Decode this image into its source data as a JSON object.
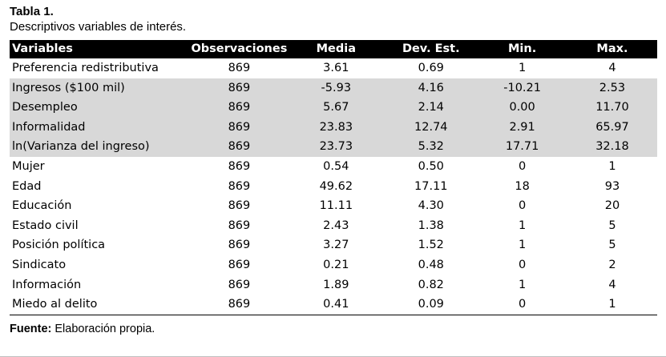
{
  "caption": {
    "title": "Tabla 1.",
    "subtitle": "Descriptivos variables de interés."
  },
  "table": {
    "headers": [
      "Variables",
      "Observaciones",
      "Media",
      "Dev. Est.",
      "Min.",
      "Max."
    ],
    "rows": [
      {
        "shaded": false,
        "cells": [
          "Preferencia redistributiva",
          "869",
          "3.61",
          "0.69",
          "1",
          "4"
        ]
      },
      {
        "shaded": true,
        "cells": [
          "Ingresos ($100 mil)",
          "869",
          "-5.93",
          "4.16",
          "-10.21",
          "2.53"
        ]
      },
      {
        "shaded": true,
        "cells": [
          "Desempleo",
          "869",
          "5.67",
          "2.14",
          "0.00",
          "11.70"
        ]
      },
      {
        "shaded": true,
        "cells": [
          "Informalidad",
          "869",
          "23.83",
          "12.74",
          "2.91",
          "65.97"
        ]
      },
      {
        "shaded": true,
        "cells": [
          "ln(Varianza del ingreso)",
          "869",
          "23.73",
          "5.32",
          "17.71",
          "32.18"
        ]
      },
      {
        "shaded": false,
        "cells": [
          "Mujer",
          "869",
          "0.54",
          "0.50",
          "0",
          "1"
        ]
      },
      {
        "shaded": false,
        "cells": [
          "Edad",
          "869",
          "49.62",
          "17.11",
          "18",
          "93"
        ]
      },
      {
        "shaded": false,
        "cells": [
          "Educación",
          "869",
          "11.11",
          "4.30",
          "0",
          "20"
        ]
      },
      {
        "shaded": false,
        "cells": [
          "Estado civil",
          "869",
          "2.43",
          "1.38",
          "1",
          "5"
        ]
      },
      {
        "shaded": false,
        "cells": [
          "Posición política",
          "869",
          "3.27",
          "1.52",
          "1",
          "5"
        ]
      },
      {
        "shaded": false,
        "cells": [
          "Sindicato",
          "869",
          "0.21",
          "0.48",
          "0",
          "2"
        ]
      },
      {
        "shaded": false,
        "cells": [
          "Información",
          "869",
          "1.89",
          "0.82",
          "1",
          "4"
        ]
      },
      {
        "shaded": false,
        "cells": [
          "Miedo al delito",
          "869",
          "0.41",
          "0.09",
          "0",
          "1"
        ]
      }
    ]
  },
  "source": {
    "label": "Fuente:",
    "text": " Elaboración propia."
  },
  "colors": {
    "header_bg": "#000000",
    "header_text": "#ffffff",
    "shaded_row_bg": "#d8d8d8"
  }
}
